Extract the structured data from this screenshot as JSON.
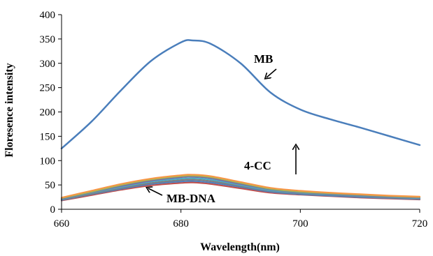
{
  "chart_data": {
    "type": "line",
    "xlabel": "Wavelength(nm)",
    "ylabel": "Floresence intensity",
    "xlim": [
      660,
      720
    ],
    "ylim": [
      0,
      400
    ],
    "xticks": [
      660,
      680,
      700,
      720
    ],
    "yticks": [
      0,
      50,
      100,
      150,
      200,
      250,
      300,
      350,
      400
    ],
    "grid": false,
    "legend": "none",
    "x": [
      660,
      665,
      670,
      675,
      680,
      682,
      685,
      690,
      695,
      700,
      705,
      710,
      715,
      720
    ],
    "series": [
      {
        "color": "#4a7ebb",
        "width": 2.5,
        "values": [
          125,
          180,
          245,
          305,
          343,
          347,
          340,
          300,
          240,
          205,
          185,
          168,
          150,
          132
        ]
      },
      {
        "color": "#f79646",
        "width": 2.2,
        "values": [
          24,
          38,
          52,
          63,
          70,
          71,
          68,
          56,
          44,
          38,
          34,
          31,
          28,
          26
        ]
      },
      {
        "color": "#9bbb59",
        "width": 2.2,
        "values": [
          23,
          36,
          50,
          61,
          68,
          69,
          66,
          54,
          42,
          36,
          33,
          30,
          27,
          25
        ]
      },
      {
        "color": "#8064a2",
        "width": 2.2,
        "values": [
          22,
          35,
          48,
          59,
          66,
          67,
          64,
          52,
          41,
          35,
          32,
          29,
          26,
          24
        ]
      },
      {
        "color": "#4bacc6",
        "width": 2.2,
        "values": [
          21,
          34,
          46,
          57,
          63,
          64,
          61,
          50,
          39,
          34,
          31,
          28,
          25,
          23
        ]
      },
      {
        "color": "#7f7f7f",
        "width": 2.2,
        "values": [
          20,
          32,
          44,
          54,
          60,
          61,
          58,
          48,
          38,
          33,
          30,
          27,
          24,
          22
        ]
      },
      {
        "color": "#4f81bd",
        "width": 2.2,
        "values": [
          19,
          31,
          42,
          52,
          57,
          58,
          55,
          46,
          36,
          31,
          28,
          25,
          23,
          21
        ]
      },
      {
        "color": "#c0504d",
        "width": 2.2,
        "values": [
          18,
          29,
          40,
          49,
          54,
          55,
          52,
          43,
          34,
          30,
          27,
          24,
          22,
          20
        ]
      }
    ],
    "annotations": [
      {
        "text": "MB",
        "arrow": "down-left"
      },
      {
        "text": "4-CC",
        "arrow": "up"
      },
      {
        "text": "MB-DNA",
        "arrow": "up-left"
      }
    ]
  }
}
